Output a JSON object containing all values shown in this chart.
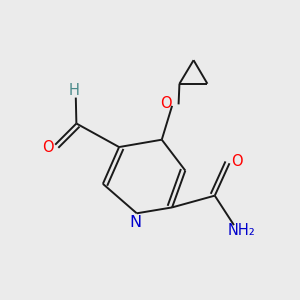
{
  "bg_color": "#ebebeb",
  "atom_colors": {
    "C": "#4a8a8a",
    "O": "#ff0000",
    "N": "#0000cc",
    "H": "#4a8a8a",
    "black": "#1a1a1a"
  },
  "bond_color": "#1a1a1a",
  "bond_lw": 1.4,
  "dbo": 0.018,
  "font_size_atom": 10.5
}
